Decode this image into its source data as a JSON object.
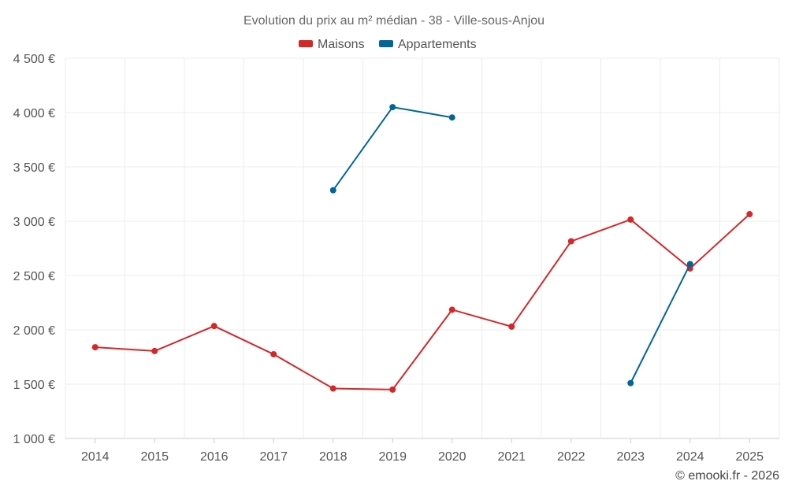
{
  "chart_data": {
    "type": "line",
    "title": "Evolution du prix au m² médian - 38 - Ville-sous-Anjou",
    "categories": [
      "2014",
      "2015",
      "2016",
      "2017",
      "2018",
      "2019",
      "2020",
      "2021",
      "2022",
      "2023",
      "2024",
      "2025"
    ],
    "ylim": [
      1000,
      4500
    ],
    "yticks": [
      1000,
      1500,
      2000,
      2500,
      3000,
      3500,
      4000,
      4500
    ],
    "ytick_labels": [
      "1 000 €",
      "1 500 €",
      "2 000 €",
      "2 500 €",
      "3 000 €",
      "3 500 €",
      "4 000 €",
      "4 500 €"
    ],
    "grid": true,
    "legend_position": "top-center",
    "series": [
      {
        "name": "Maisons",
        "color": "#d62728",
        "values": [
          1840,
          1805,
          2035,
          1775,
          1460,
          1450,
          2185,
          2030,
          2815,
          3015,
          2565,
          3065
        ]
      },
      {
        "name": "Appartements",
        "color": "#006699",
        "values": [
          null,
          null,
          null,
          null,
          3285,
          4050,
          3955,
          null,
          null,
          1510,
          2605,
          null
        ]
      }
    ]
  },
  "credit": "© emooki.fr - 2026"
}
